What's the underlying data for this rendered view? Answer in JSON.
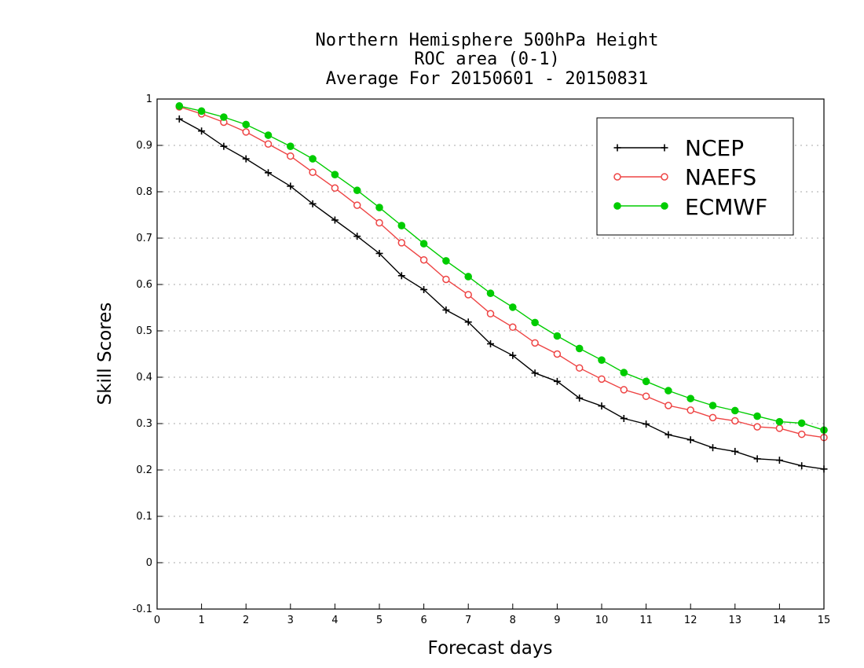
{
  "chart_data": {
    "type": "line",
    "title": [
      "Northern Hemisphere 500hPa Height",
      "ROC area (0-1)",
      "Average For 20150601 - 20150831"
    ],
    "xlabel": "Forecast days",
    "ylabel": "Skill Scores",
    "xlim": [
      0,
      15
    ],
    "ylim": [
      -0.1,
      1
    ],
    "xticks": [
      0,
      1,
      2,
      3,
      4,
      5,
      6,
      7,
      8,
      9,
      10,
      11,
      12,
      13,
      14,
      15
    ],
    "xtick_labels": [
      "0",
      "1",
      "2",
      "3",
      "4",
      "5",
      "6",
      "7",
      "8",
      "9",
      "10",
      "11",
      "12",
      "13",
      "14",
      "15"
    ],
    "yticks": [
      -0.1,
      0,
      0.1,
      0.2,
      0.3,
      0.4,
      0.5,
      0.6,
      0.7,
      0.8,
      0.9,
      1
    ],
    "ytick_labels": [
      "-0.1",
      "0",
      "0.1",
      "0.2",
      "0.3",
      "0.4",
      "0.5",
      "0.6",
      "0.7",
      "0.8",
      "0.9",
      "1"
    ],
    "grid": "horizontal dotted",
    "legend_position": "top-right",
    "x": [
      0.5,
      1,
      1.5,
      2,
      2.5,
      3,
      3.5,
      4,
      4.5,
      5,
      5.5,
      6,
      6.5,
      7,
      7.5,
      8,
      8.5,
      9,
      9.5,
      10,
      10.5,
      11,
      11.5,
      12,
      12.5,
      13,
      13.5,
      14,
      14.5,
      15
    ],
    "series": [
      {
        "name": "NCEP",
        "color": "#000000",
        "marker": "plus",
        "values": [
          0.957,
          0.931,
          0.898,
          0.871,
          0.841,
          0.812,
          0.774,
          0.739,
          0.704,
          0.667,
          0.619,
          0.589,
          0.545,
          0.519,
          0.472,
          0.447,
          0.409,
          0.391,
          0.355,
          0.338,
          0.311,
          0.299,
          0.276,
          0.265,
          0.248,
          0.24,
          0.224,
          0.221,
          0.209,
          0.202
        ]
      },
      {
        "name": "NAEFS",
        "color": "#ee4444",
        "marker": "open-circle",
        "values": [
          0.983,
          0.968,
          0.95,
          0.929,
          0.903,
          0.877,
          0.842,
          0.808,
          0.771,
          0.733,
          0.69,
          0.653,
          0.611,
          0.578,
          0.537,
          0.508,
          0.474,
          0.45,
          0.42,
          0.396,
          0.373,
          0.359,
          0.339,
          0.329,
          0.313,
          0.306,
          0.293,
          0.29,
          0.277,
          0.27
        ]
      },
      {
        "name": "ECMWF",
        "color": "#00cc00",
        "marker": "filled-circle",
        "values": [
          0.985,
          0.974,
          0.961,
          0.945,
          0.922,
          0.898,
          0.871,
          0.837,
          0.803,
          0.766,
          0.727,
          0.688,
          0.651,
          0.617,
          0.581,
          0.551,
          0.518,
          0.489,
          0.462,
          0.437,
          0.41,
          0.391,
          0.371,
          0.354,
          0.339,
          0.328,
          0.316,
          0.304,
          0.301,
          0.286
        ]
      }
    ]
  }
}
